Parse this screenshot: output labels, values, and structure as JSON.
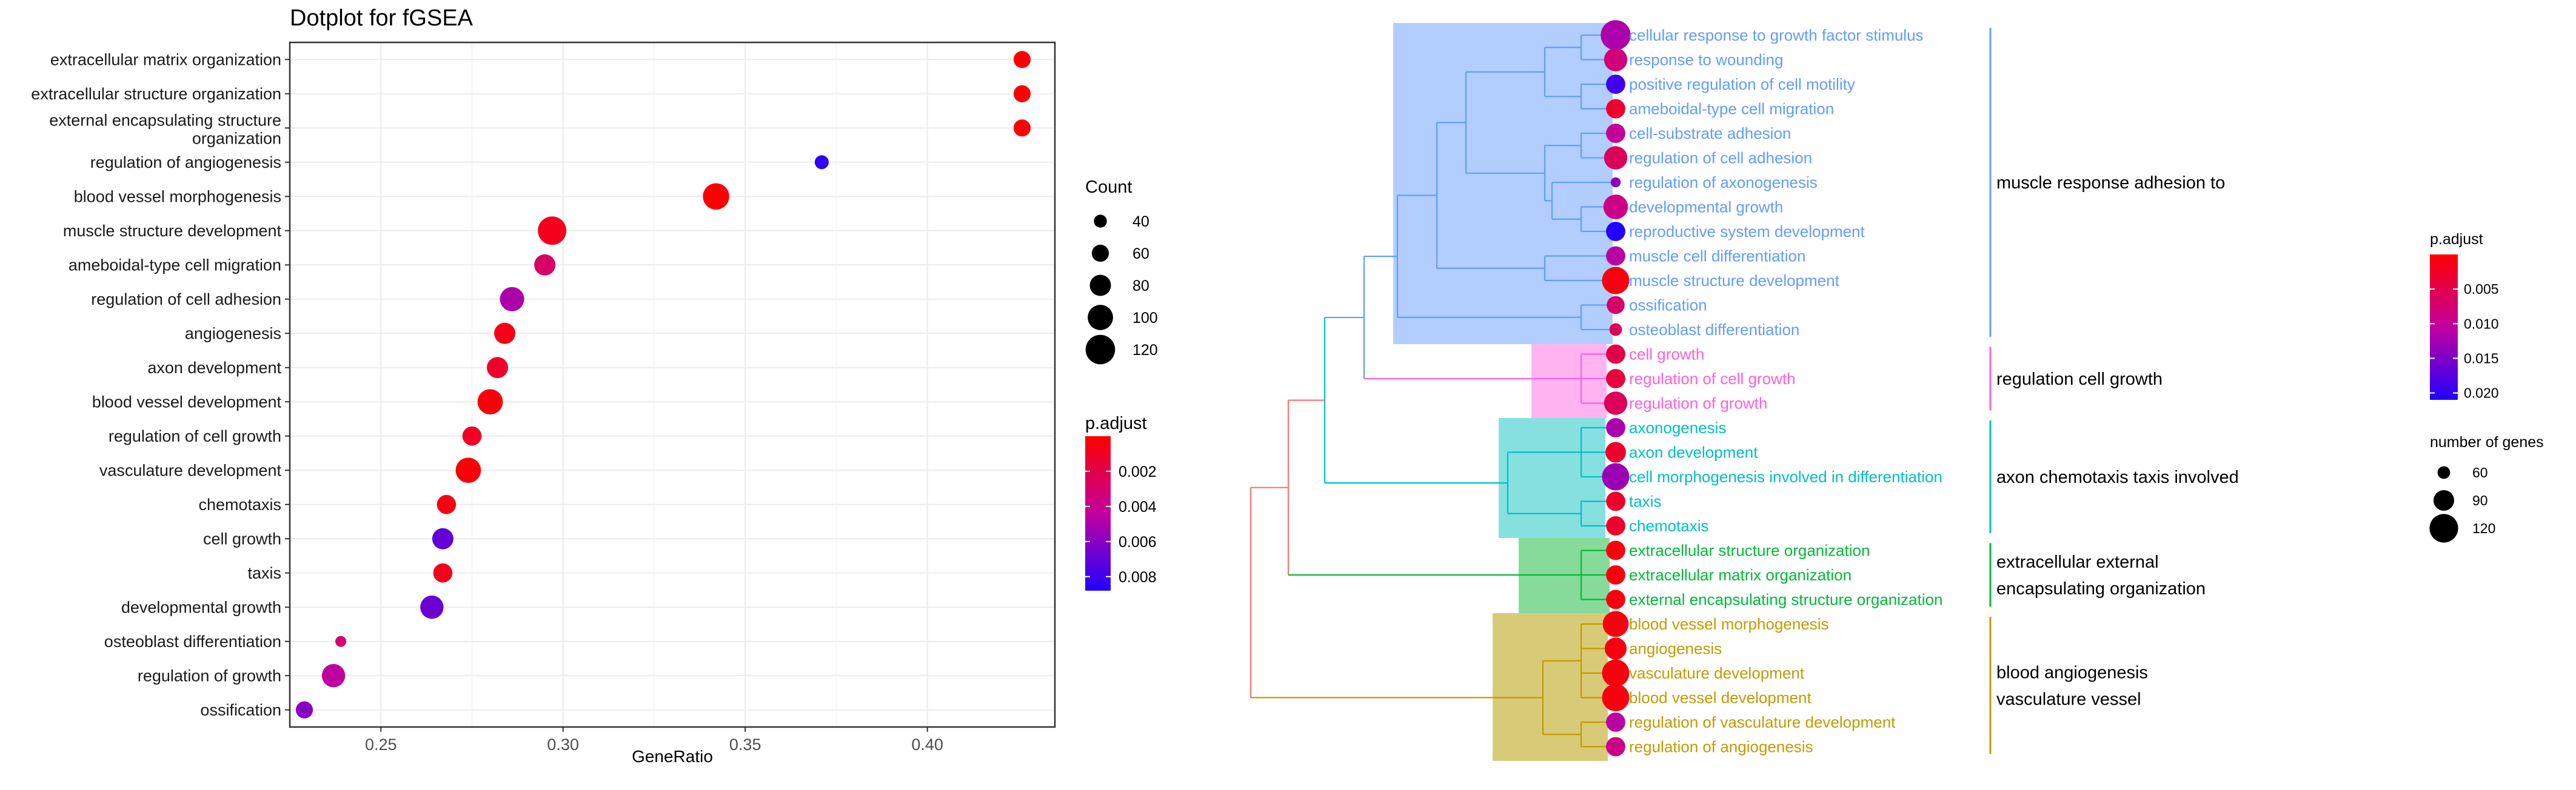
{
  "colors": {
    "padj_high": "#ff0000",
    "padj_mid": "#c2009e",
    "padj_low": "#2200ff",
    "panel_grid": "#ebebeb",
    "cluster1": "#f8766d",
    "cluster2": "#c49a00",
    "cluster3": "#00ba38",
    "cluster4": "#00bfc4",
    "cluster5": "#ff5fd9",
    "cluster6": "#619cff"
  },
  "chart_data": [
    {
      "type": "scatter",
      "title": "Dotplot for fGSEA",
      "xlabel": "GeneRatio",
      "ylabel": "",
      "xlim": [
        0.225,
        0.435
      ],
      "xticks": [
        "0.25",
        "0.30",
        "0.35",
        "0.40"
      ],
      "xtick_values": [
        0.25,
        0.3,
        0.35,
        0.4
      ],
      "grid": true,
      "categories": [
        "extracellular matrix organization",
        "extracellular structure organization",
        "external encapsulating structure organization",
        "regulation of angiogenesis",
        "blood vessel morphogenesis",
        "muscle structure development",
        "ameboidal-type cell migration",
        "regulation of cell adhesion",
        "angiogenesis",
        "axon development",
        "blood vessel development",
        "regulation of cell growth",
        "vasculature development",
        "chemotaxis",
        "cell growth",
        "taxis",
        "developmental growth",
        "osteoblast differentiation",
        "regulation of growth",
        "ossification"
      ],
      "category_labels": [
        [
          "extracellular matrix organization"
        ],
        [
          "extracellular structure organization"
        ],
        [
          "external encapsulating structure",
          "organization"
        ],
        [
          "regulation of angiogenesis"
        ],
        [
          "blood vessel morphogenesis"
        ],
        [
          "muscle structure development"
        ],
        [
          "ameboidal-type cell migration"
        ],
        [
          "regulation of cell adhesion"
        ],
        [
          "angiogenesis"
        ],
        [
          "axon development"
        ],
        [
          "blood vessel development"
        ],
        [
          "regulation of cell growth"
        ],
        [
          "vasculature development"
        ],
        [
          "chemotaxis"
        ],
        [
          "cell growth"
        ],
        [
          "taxis"
        ],
        [
          "developmental growth"
        ],
        [
          "osteoblast differentiation"
        ],
        [
          "regulation of growth"
        ],
        [
          "ossification"
        ]
      ],
      "x": [
        0.426,
        0.426,
        0.426,
        0.371,
        0.342,
        0.297,
        0.295,
        0.286,
        0.284,
        0.282,
        0.28,
        0.275,
        0.274,
        0.268,
        0.267,
        0.267,
        0.264,
        0.239,
        0.237,
        0.229
      ],
      "count": [
        60,
        60,
        60,
        45,
        105,
        115,
        80,
        95,
        80,
        80,
        100,
        70,
        100,
        70,
        80,
        70,
        90,
        30,
        90,
        60
      ],
      "p_adjust": [
        0.0001,
        0.0001,
        0.0001,
        0.0085,
        0.0001,
        0.0008,
        0.0028,
        0.005,
        0.0006,
        0.0012,
        0.0003,
        0.001,
        0.0002,
        0.0005,
        0.007,
        0.0008,
        0.0068,
        0.0032,
        0.0045,
        0.006
      ],
      "legend_count": {
        "title": "Count",
        "labels": [
          "40",
          "60",
          "80",
          "100",
          "120"
        ],
        "values": [
          40,
          60,
          80,
          100,
          120
        ]
      },
      "legend_padj": {
        "title": "p.adjust",
        "labels": [
          "0.002",
          "0.004",
          "0.006",
          "0.008"
        ],
        "values": [
          0.002,
          0.004,
          0.006,
          0.008
        ],
        "range": [
          0.0,
          0.0088
        ]
      }
    },
    {
      "type": "tree",
      "terms": [
        {
          "label": "cellular response to growth factor stimulus",
          "cluster": 6,
          "count": 125,
          "p_adjust": 0.012
        },
        {
          "label": "response to wounding",
          "cluster": 6,
          "count": 100,
          "p_adjust": 0.008
        },
        {
          "label": "positive regulation of cell motility",
          "cluster": 6,
          "count": 85,
          "p_adjust": 0.019
        },
        {
          "label": "ameboidal-type cell migration",
          "cluster": 6,
          "count": 85,
          "p_adjust": 0.003
        },
        {
          "label": "cell-substrate adhesion",
          "cluster": 6,
          "count": 85,
          "p_adjust": 0.01
        },
        {
          "label": "regulation of cell adhesion",
          "cluster": 6,
          "count": 100,
          "p_adjust": 0.006
        },
        {
          "label": "regulation of axonogenesis",
          "cluster": 6,
          "count": 50,
          "p_adjust": 0.014
        },
        {
          "label": "developmental growth",
          "cluster": 6,
          "count": 105,
          "p_adjust": 0.009
        },
        {
          "label": "reproductive system development",
          "cluster": 6,
          "count": 85,
          "p_adjust": 0.021
        },
        {
          "label": "muscle cell differentiation",
          "cluster": 6,
          "count": 85,
          "p_adjust": 0.011
        },
        {
          "label": "muscle structure development",
          "cluster": 6,
          "count": 115,
          "p_adjust": 0.001
        },
        {
          "label": "ossification",
          "cluster": 6,
          "count": 80,
          "p_adjust": 0.007
        },
        {
          "label": "osteoblast differentiation",
          "cluster": 6,
          "count": 60,
          "p_adjust": 0.006
        },
        {
          "label": "cell growth",
          "cluster": 5,
          "count": 85,
          "p_adjust": 0.005
        },
        {
          "label": "regulation of cell growth",
          "cluster": 5,
          "count": 85,
          "p_adjust": 0.004
        },
        {
          "label": "regulation of growth",
          "cluster": 5,
          "count": 100,
          "p_adjust": 0.006
        },
        {
          "label": "axonogenesis",
          "cluster": 4,
          "count": 85,
          "p_adjust": 0.012
        },
        {
          "label": "axon development",
          "cluster": 4,
          "count": 90,
          "p_adjust": 0.003
        },
        {
          "label": "cell morphogenesis involved in differentiation",
          "cluster": 4,
          "count": 115,
          "p_adjust": 0.013
        },
        {
          "label": "taxis",
          "cluster": 4,
          "count": 85,
          "p_adjust": 0.003
        },
        {
          "label": "chemotaxis",
          "cluster": 4,
          "count": 85,
          "p_adjust": 0.003
        },
        {
          "label": "extracellular structure organization",
          "cluster": 3,
          "count": 85,
          "p_adjust": 0.001
        },
        {
          "label": "extracellular matrix organization",
          "cluster": 3,
          "count": 85,
          "p_adjust": 0.001
        },
        {
          "label": "external encapsulating structure organization",
          "cluster": 3,
          "count": 85,
          "p_adjust": 0.001
        },
        {
          "label": "blood vessel morphogenesis",
          "cluster": 2,
          "count": 110,
          "p_adjust": 0.001
        },
        {
          "label": "angiogenesis",
          "cluster": 2,
          "count": 95,
          "p_adjust": 0.001
        },
        {
          "label": "vasculature development",
          "cluster": 2,
          "count": 115,
          "p_adjust": 0.001
        },
        {
          "label": "blood vessel development",
          "cluster": 2,
          "count": 115,
          "p_adjust": 0.001
        },
        {
          "label": "regulation of vasculature development",
          "cluster": 2,
          "count": 85,
          "p_adjust": 0.011
        },
        {
          "label": "regulation of angiogenesis",
          "cluster": 2,
          "count": 85,
          "p_adjust": 0.009
        }
      ],
      "cluster_labels": [
        {
          "cluster": 6,
          "lines": [
            "muscle response adhesion to"
          ]
        },
        {
          "cluster": 5,
          "lines": [
            "regulation cell growth"
          ]
        },
        {
          "cluster": 4,
          "lines": [
            "axon chemotaxis taxis involved"
          ]
        },
        {
          "cluster": 3,
          "lines": [
            "extracellular external",
            "encapsulating organization"
          ]
        },
        {
          "cluster": 2,
          "lines": [
            "blood angiogenesis",
            "vasculature vessel"
          ]
        }
      ],
      "legend_padj": {
        "title": "p.adjust",
        "labels": [
          "0.005",
          "0.010",
          "0.015",
          "0.020"
        ],
        "values": [
          0.005,
          0.01,
          0.015,
          0.02
        ],
        "range": [
          0.0,
          0.021
        ]
      },
      "legend_size": {
        "title": "number of genes",
        "labels": [
          "60",
          "90",
          "120"
        ],
        "values": [
          60,
          90,
          120
        ]
      }
    }
  ]
}
